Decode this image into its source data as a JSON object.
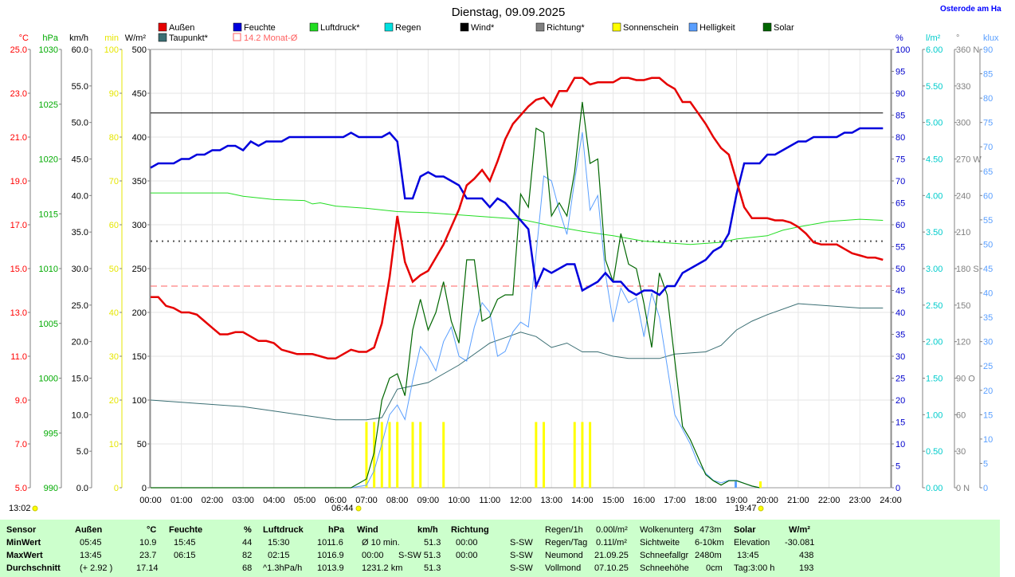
{
  "title": "Dienstag, 09.09.2025",
  "location": "Osterode am Ha",
  "legend": [
    {
      "label": "Außen",
      "color": "#e60000"
    },
    {
      "label": "Taupunkt*",
      "color": "#3a6e73"
    },
    {
      "label": "Feuchte",
      "color": "#0000dd"
    },
    {
      "label": "14.2 Monat-Ø",
      "color": "#ff6060",
      "hollow": true
    },
    {
      "label": "Luftdruck*",
      "color": "#22dd22"
    },
    {
      "label": "Regen",
      "color": "#00e0e0"
    },
    {
      "label": "Wind*",
      "color": "#000000"
    },
    {
      "label": "Richtung*",
      "color": "#808080"
    },
    {
      "label": "Sonnenschein",
      "color": "#ffff00"
    },
    {
      "label": "Helligkeit",
      "color": "#5a9fff"
    },
    {
      "label": "Solar",
      "color": "#006600"
    }
  ],
  "axes": {
    "temp": {
      "unit": "°C",
      "ticks": [
        "25.0",
        "23.0",
        "21.0",
        "19.0",
        "17.0",
        "15.0",
        "13.0",
        "11.0",
        "9.0",
        "7.0",
        "5.0"
      ],
      "color": "#ff0000"
    },
    "press": {
      "unit": "hPa",
      "ticks": [
        "1030",
        "1025",
        "1020",
        "1015",
        "1010",
        "1005",
        "1000",
        "995",
        "990"
      ],
      "color": "#00aa00"
    },
    "wind": {
      "unit": "km/h",
      "ticks": [
        "60.0",
        "55.0",
        "50.0",
        "45.0",
        "40.0",
        "35.0",
        "30.0",
        "25.0",
        "20.0",
        "15.0",
        "10.0",
        "5.0",
        "0.0"
      ],
      "color": "#000000"
    },
    "sun": {
      "unit": "min",
      "ticks": [
        "100",
        "90",
        "80",
        "70",
        "60",
        "50",
        "40",
        "30",
        "20",
        "10",
        "0"
      ],
      "color": "#e6e600"
    },
    "solar": {
      "unit": "W/m²",
      "ticks": [
        "500",
        "450",
        "400",
        "350",
        "300",
        "250",
        "200",
        "150",
        "100",
        "50",
        "0"
      ],
      "color": "#000000"
    },
    "hum": {
      "unit": "%",
      "ticks": [
        "100",
        "95",
        "90",
        "85",
        "80",
        "75",
        "70",
        "65",
        "60",
        "55",
        "50",
        "45",
        "40",
        "35",
        "30",
        "25",
        "20",
        "15",
        "10",
        "5",
        "0"
      ],
      "color": "#0000cc"
    },
    "rain": {
      "unit": "l/m²",
      "ticks": [
        "6.00",
        "5.50",
        "5.00",
        "4.50",
        "4.00",
        "3.50",
        "3.00",
        "2.50",
        "2.00",
        "1.50",
        "1.00",
        "0.50",
        "0.00"
      ],
      "color": "#00cccc"
    },
    "dir": {
      "unit": "°",
      "ticks": [
        "360 N",
        "330",
        "300",
        "270 W",
        "240",
        "210",
        "180 S",
        "150",
        "120",
        "90 O",
        "60",
        "30",
        "0 N"
      ],
      "color": "#808080"
    },
    "lux": {
      "unit": "klux",
      "ticks": [
        "90",
        "85",
        "80",
        "75",
        "70",
        "65",
        "60",
        "55",
        "50",
        "45",
        "40",
        "35",
        "30",
        "25",
        "20",
        "15",
        "10",
        "5",
        "0"
      ],
      "color": "#5a9fff"
    },
    "x": {
      "ticks": [
        "00:00",
        "01:00",
        "02:00",
        "03:00",
        "04:00",
        "05:00",
        "06:00",
        "07:00",
        "08:00",
        "09:00",
        "10:00",
        "11:00",
        "12:00",
        "13:00",
        "14:00",
        "15:00",
        "16:00",
        "17:00",
        "18:00",
        "19:00",
        "20:00",
        "21:00",
        "22:00",
        "23:00",
        "24:00"
      ]
    }
  },
  "annotations": {
    "time_now": "13:02",
    "sunrise": "06:44",
    "sunset": "19:47"
  },
  "chart_data": {
    "type": "line",
    "x_unit": "hour",
    "series": [
      {
        "name": "Außen",
        "axis": "temp",
        "color": "#e60000",
        "x": [
          0,
          0.25,
          0.5,
          0.75,
          1,
          1.25,
          1.5,
          1.75,
          2,
          2.25,
          2.5,
          2.75,
          3,
          3.25,
          3.5,
          3.75,
          4,
          4.25,
          4.5,
          4.75,
          5,
          5.25,
          5.5,
          5.75,
          6,
          6.25,
          6.5,
          6.75,
          7,
          7.25,
          7.5,
          7.75,
          8,
          8.25,
          8.5,
          8.75,
          9,
          9.25,
          9.5,
          9.75,
          10,
          10.25,
          10.5,
          10.75,
          11,
          11.25,
          11.5,
          11.75,
          12,
          12.25,
          12.5,
          12.75,
          13,
          13.25,
          13.5,
          13.75,
          14,
          14.25,
          14.5,
          14.75,
          15,
          15.25,
          15.5,
          15.75,
          16,
          16.25,
          16.5,
          16.75,
          17,
          17.25,
          17.5,
          17.75,
          18,
          18.25,
          18.5,
          18.75,
          19,
          19.25,
          19.5,
          19.75,
          20,
          20.25,
          20.5,
          20.75,
          21,
          21.25,
          21.5,
          21.75,
          22,
          22.25,
          22.5,
          22.75,
          23,
          23.25,
          23.5,
          23.75
        ],
        "y": [
          13.7,
          13.7,
          13.3,
          13.2,
          13.0,
          13.0,
          12.9,
          12.6,
          12.3,
          12.0,
          12.0,
          12.1,
          12.1,
          11.9,
          11.7,
          11.7,
          11.6,
          11.3,
          11.2,
          11.1,
          11.1,
          11.1,
          11.0,
          10.9,
          10.9,
          11.1,
          11.3,
          11.2,
          11.2,
          11.4,
          12.5,
          14.6,
          17.4,
          15.3,
          14.4,
          14.7,
          14.9,
          15.5,
          16.1,
          16.9,
          17.7,
          18.8,
          19.1,
          19.5,
          19.0,
          19.9,
          20.9,
          21.6,
          22.0,
          22.4,
          22.7,
          22.8,
          22.4,
          23.1,
          23.1,
          23.7,
          23.7,
          23.4,
          23.5,
          23.5,
          23.5,
          23.7,
          23.7,
          23.6,
          23.6,
          23.7,
          23.7,
          23.4,
          23.2,
          22.6,
          22.6,
          22.1,
          21.6,
          21.0,
          20.5,
          20.2,
          19.0,
          17.8,
          17.3,
          17.3,
          17.3,
          17.2,
          17.2,
          17.1,
          16.9,
          16.6,
          16.2,
          16.1,
          16.1,
          16.1,
          15.9,
          15.7,
          15.6,
          15.5,
          15.5,
          15.4
        ]
      },
      {
        "name": "Taupunkt*",
        "axis": "temp",
        "color": "#3a6e73",
        "x": [
          0,
          1,
          2,
          3,
          4,
          5,
          6,
          7,
          7.5,
          8,
          9,
          10,
          11,
          12,
          12.5,
          13,
          13.5,
          14,
          14.5,
          15,
          15.5,
          16,
          16.5,
          17,
          18,
          18.5,
          19,
          19.5,
          20,
          21,
          22,
          23,
          23.75
        ],
        "y": [
          9.0,
          8.9,
          8.8,
          8.7,
          8.5,
          8.3,
          8.1,
          8.1,
          8.2,
          9.5,
          9.8,
          10.6,
          11.6,
          12.1,
          11.9,
          11.4,
          11.6,
          11.2,
          11.2,
          11.0,
          10.9,
          10.9,
          10.9,
          11.1,
          11.2,
          11.5,
          12.2,
          12.6,
          12.9,
          13.4,
          13.3,
          13.2,
          13.2
        ]
      },
      {
        "name": "Feuchte",
        "axis": "hum",
        "color": "#0000dd",
        "x": [
          0,
          0.25,
          0.5,
          0.75,
          1,
          1.25,
          1.5,
          1.75,
          2,
          2.25,
          2.5,
          2.75,
          3,
          3.25,
          3.5,
          3.75,
          4,
          4.25,
          4.5,
          4.75,
          5,
          5.25,
          5.5,
          5.75,
          6,
          6.25,
          6.5,
          6.75,
          7,
          7.25,
          7.5,
          7.75,
          8,
          8.25,
          8.5,
          8.75,
          9,
          9.25,
          9.5,
          9.75,
          10,
          10.25,
          10.5,
          10.75,
          11,
          11.25,
          11.5,
          11.75,
          12,
          12.25,
          12.5,
          12.75,
          13,
          13.25,
          13.5,
          13.75,
          14,
          14.25,
          14.5,
          14.75,
          15,
          15.25,
          15.5,
          15.75,
          16,
          16.25,
          16.5,
          16.75,
          17,
          17.25,
          17.5,
          17.75,
          18,
          18.25,
          18.5,
          18.75,
          19,
          19.25,
          19.5,
          19.75,
          20,
          20.25,
          20.5,
          20.75,
          21,
          21.25,
          21.5,
          21.75,
          22,
          22.25,
          22.5,
          22.75,
          23,
          23.25,
          23.5,
          23.75
        ],
        "y": [
          73,
          74,
          74,
          74,
          75,
          75,
          76,
          76,
          77,
          77,
          78,
          78,
          77,
          79,
          78,
          79,
          79,
          79,
          80,
          80,
          80,
          80,
          80,
          80,
          80,
          80,
          81,
          80,
          80,
          80,
          80,
          81,
          79,
          66,
          66,
          71,
          72,
          71,
          71,
          70,
          69,
          66,
          66,
          66,
          64,
          66,
          65,
          63,
          61,
          59,
          46,
          50,
          49,
          50,
          51,
          51,
          45,
          46,
          47,
          49,
          47,
          47,
          45,
          44,
          45,
          45,
          44,
          46,
          46,
          49,
          50,
          51,
          52,
          54,
          55,
          58,
          67,
          74,
          74,
          74,
          76,
          76,
          77,
          78,
          79,
          79,
          80,
          80,
          80,
          80,
          81,
          81,
          82,
          82,
          82,
          82
        ]
      },
      {
        "name": "Luftdruck*",
        "axis": "press",
        "color": "#22dd22",
        "x": [
          0,
          1,
          2,
          2.5,
          3,
          4,
          5,
          5.25,
          5.5,
          6,
          7,
          8,
          9,
          10,
          11,
          12,
          13,
          14,
          15,
          16,
          17,
          17.5,
          18,
          18.5,
          19,
          20,
          20.5,
          21,
          22,
          23,
          23.75
        ],
        "y": [
          1016.9,
          1016.9,
          1016.9,
          1016.9,
          1016.6,
          1016.3,
          1016.2,
          1015.9,
          1016.0,
          1015.7,
          1015.5,
          1015.2,
          1015.1,
          1014.9,
          1014.7,
          1014.5,
          1013.9,
          1013.4,
          1013.0,
          1012.5,
          1012.3,
          1012.2,
          1012.3,
          1012.4,
          1012.7,
          1013.0,
          1013.5,
          1013.8,
          1014.3,
          1014.5,
          1014.4
        ]
      },
      {
        "name": "Wind*",
        "axis": "wind",
        "color": "#000000",
        "x": [
          0,
          23.75
        ],
        "y": [
          51.3,
          51.3
        ]
      },
      {
        "name": "Richtung*",
        "axis": "dir",
        "color": "#808080",
        "x": [
          0,
          23.75
        ],
        "y": [
          202.5,
          202.5
        ]
      },
      {
        "name": "Monat-Ø",
        "axis": "temp",
        "color": "#ff6060",
        "x": [
          0,
          24
        ],
        "y": [
          14.2,
          14.2
        ]
      },
      {
        "name": "Helligkeit",
        "axis": "lux",
        "color": "#5a9fff",
        "x": [
          0,
          6.5,
          7.0,
          7.25,
          7.5,
          7.75,
          8,
          8.25,
          8.5,
          8.75,
          9,
          9.25,
          9.5,
          9.75,
          10,
          10.25,
          10.5,
          10.75,
          11,
          11.25,
          11.5,
          11.75,
          12,
          12.25,
          12.5,
          12.75,
          13,
          13.25,
          13.5,
          13.75,
          14,
          14.25,
          14.5,
          14.75,
          15,
          15.25,
          15.5,
          15.75,
          16,
          16.25,
          16.5,
          16.75,
          17,
          17.25,
          17.5,
          17.75,
          18,
          18.25,
          18.5,
          18.75,
          19,
          19.5,
          19.75
        ],
        "y": [
          0,
          0,
          0.5,
          3.5,
          9,
          15,
          17,
          14,
          22,
          29,
          27,
          24,
          30,
          33,
          27,
          26,
          33,
          38,
          36,
          27,
          28,
          32,
          34,
          33,
          48,
          64,
          63,
          57,
          52,
          63,
          73,
          57,
          60,
          44,
          34,
          41,
          38,
          39,
          31,
          40,
          35,
          25,
          15,
          12,
          9,
          5,
          3,
          1.5,
          1,
          1.5,
          1.5,
          0.3,
          0
        ]
      },
      {
        "name": "Solar",
        "axis": "solar",
        "color": "#006600",
        "x": [
          0,
          6.5,
          7.0,
          7.25,
          7.5,
          7.75,
          8,
          8.25,
          8.5,
          8.75,
          9,
          9.25,
          9.5,
          9.75,
          10,
          10.25,
          10.5,
          10.75,
          11,
          11.25,
          11.5,
          11.75,
          12,
          12.25,
          12.5,
          12.75,
          13,
          13.25,
          13.5,
          13.75,
          14,
          14.25,
          14.5,
          14.75,
          15,
          15.25,
          15.5,
          15.75,
          16,
          16.25,
          16.5,
          16.75,
          17,
          17.25,
          17.5,
          17.75,
          18,
          18.25,
          18.5,
          18.75,
          19,
          19.5,
          19.75
        ],
        "y": [
          0,
          0,
          10,
          40,
          100,
          125,
          130,
          105,
          180,
          215,
          180,
          200,
          235,
          190,
          165,
          260,
          260,
          190,
          195,
          215,
          220,
          220,
          335,
          320,
          410,
          405,
          310,
          325,
          310,
          360,
          440,
          370,
          375,
          260,
          235,
          290,
          255,
          250,
          210,
          160,
          245,
          220,
          145,
          70,
          55,
          35,
          15,
          8,
          3,
          8,
          8,
          2,
          0
        ]
      }
    ],
    "bars": {
      "name": "Sonnenschein",
      "axis": "sun",
      "color": "#ffff00",
      "x": [
        7.0,
        7.25,
        7.5,
        7.75,
        8.0,
        8.5,
        8.75,
        9.5,
        12.5,
        12.75,
        13.75,
        14.0,
        14.25
      ],
      "y": [
        15,
        15,
        15,
        15,
        15,
        15,
        15,
        15,
        15,
        15,
        15,
        15,
        15
      ]
    }
  },
  "table": {
    "row_labels": [
      "Sensor",
      "MinWert",
      "MaxWert",
      "Durchschnitt"
    ],
    "aussen": {
      "header": "Außen",
      "unit": "°C",
      "rows": [
        [
          "05:45",
          "10.9"
        ],
        [
          "13:45",
          "23.7"
        ],
        [
          "(+ 2.92 )",
          "17.14"
        ]
      ]
    },
    "feuchte": {
      "header": "Feuchte",
      "unit": "%",
      "rows": [
        [
          "15:45",
          "44"
        ],
        [
          "06:15",
          "82"
        ],
        [
          "",
          "68"
        ]
      ]
    },
    "luftdruck": {
      "header": "Luftdruck",
      "unit": "hPa",
      "rows": [
        [
          "15:30",
          "1011.6"
        ],
        [
          "02:15",
          "1016.9"
        ],
        [
          "^1.3hPa/h",
          "1013.9"
        ]
      ]
    },
    "wind": {
      "header": "Wind",
      "unit": "km/h",
      "rows": [
        [
          "Ø 10 min.",
          "51.3"
        ],
        [
          "00:00",
          "S-SW 51.3"
        ],
        [
          "1231.2 km",
          "51.3"
        ]
      ]
    },
    "richtung": {
      "header": "Richtung",
      "rows": [
        [
          "00:00",
          "S-SW"
        ],
        [
          "00:00",
          "S-SW"
        ],
        [
          "",
          "S-SW"
        ]
      ]
    },
    "regen": [
      [
        "Regen/1h",
        "0.00l/m²"
      ],
      [
        "Regen/Tag",
        "0.11l/m²"
      ],
      [
        "Neumond",
        "21.09.25"
      ],
      [
        "Vollmond",
        "07.10.25"
      ]
    ],
    "wolken": [
      [
        "Wolkenunterg",
        "473m"
      ],
      [
        "Sichtweite",
        "6-10km"
      ],
      [
        "Schneefallgr",
        "2480m"
      ],
      [
        "Schneehöhe",
        "0cm"
      ]
    ],
    "solar": {
      "header": "Solar",
      "unit": "W/m²",
      "rows": [
        [
          "Elevation",
          "-30.081"
        ],
        [
          "13:45",
          "438"
        ],
        [
          "Tag:3:00 h",
          "193"
        ]
      ]
    }
  }
}
